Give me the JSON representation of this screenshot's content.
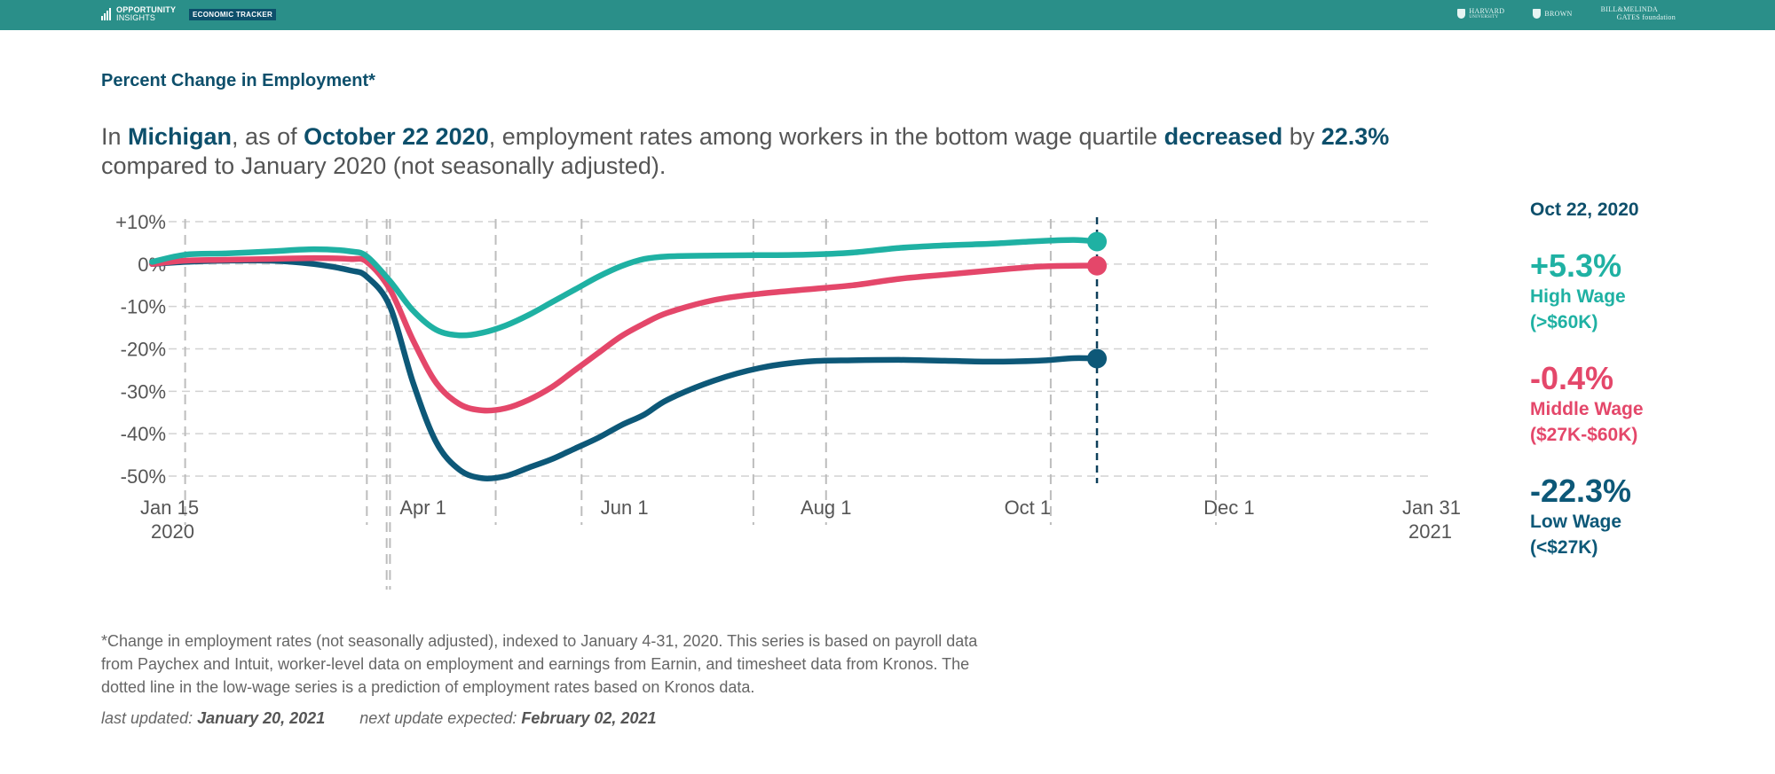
{
  "header": {
    "brand_name_line1": "OPPORTUNITY",
    "brand_name_line2": "INSIGHTS",
    "brand_tag": "ECONOMIC TRACKER",
    "partners": [
      {
        "line1": "HARVARD",
        "line2": "UNIVERSITY"
      },
      {
        "line1": "BROWN",
        "line2": ""
      },
      {
        "line1": "BILL&MELINDA",
        "line2": "GATES foundation"
      }
    ]
  },
  "chart_label": "Percent Change in Employment*",
  "headline": {
    "p1": "In ",
    "state": "Michigan",
    "p2": ", as of ",
    "date": "October 22 2020",
    "p3": ", employment rates among workers in the bottom wage quartile ",
    "direction": "decreased",
    "p4": " by ",
    "amount": "22.3%",
    "p5": " compared to January 2020 (not seasonally adjusted)."
  },
  "sidebar": {
    "date": "Oct 22, 2020",
    "items": [
      {
        "value": "+5.3%",
        "name": "High Wage",
        "range": "(>$60K)",
        "color": "#1fb1a3"
      },
      {
        "value": "-0.4%",
        "name": "Middle Wage",
        "range": "($27K-$60K)",
        "color": "#e4476a"
      },
      {
        "value": "-22.3%",
        "name": "Low Wage",
        "range": "(<$27K)",
        "color": "#0d5878"
      }
    ]
  },
  "footnote": "*Change in employment rates (not seasonally adjusted), indexed to January 4-31, 2020. This series is based on payroll data from Paychex and Intuit, worker-level data on employment and earnings from Earnin, and timesheet data from Kronos. The dotted line in the low-wage series is a prediction of employment rates based on Kronos data.",
  "updated": {
    "last_label": "last updated:",
    "last_date": "January 20, 2021",
    "next_label": "next update expected:",
    "next_date": "February 02, 2021"
  },
  "chart_data": {
    "type": "line",
    "xlabel": "",
    "ylabel": "",
    "x_range": [
      "2020-01-15",
      "2021-01-31"
    ],
    "ylim": [
      -50,
      10
    ],
    "y_ticks": [
      10,
      0,
      -10,
      -20,
      -30,
      -40,
      -50
    ],
    "y_tick_labels": [
      "+10%",
      "0%",
      "-10%",
      "-20%",
      "-30%",
      "-40%",
      "-50%"
    ],
    "x_ticks": [
      {
        "date": "2020-01-15",
        "label": "Jan 15",
        "label2": "2020"
      },
      {
        "date": "2020-04-01",
        "label": "Apr 1",
        "label2": ""
      },
      {
        "date": "2020-06-01",
        "label": "Jun 1",
        "label2": ""
      },
      {
        "date": "2020-08-01",
        "label": "Aug 1",
        "label2": ""
      },
      {
        "date": "2020-10-01",
        "label": "Oct 1",
        "label2": ""
      },
      {
        "date": "2020-12-01",
        "label": "Dec 1",
        "label2": ""
      },
      {
        "date": "2021-01-31",
        "label": "Jan 31",
        "label2": "2021"
      }
    ],
    "event_lines": [
      "2020-01-20",
      "2020-03-15",
      "2020-03-21",
      "2020-03-22",
      "2020-04-23",
      "2020-05-19",
      "2020-07-10",
      "2020-08-01",
      "2020-10-08",
      "2020-11-27"
    ],
    "current_date": "2020-10-22",
    "grid": true,
    "series": [
      {
        "name": "High Wage",
        "color": "#1fb1a3",
        "points": [
          [
            "2020-01-10",
            0.5
          ],
          [
            "2020-01-20",
            2.2
          ],
          [
            "2020-02-01",
            2.5
          ],
          [
            "2020-02-15",
            3.0
          ],
          [
            "2020-02-28",
            3.5
          ],
          [
            "2020-03-10",
            3.0
          ],
          [
            "2020-03-15",
            1.8
          ],
          [
            "2020-03-22",
            -4.0
          ],
          [
            "2020-03-29",
            -11.0
          ],
          [
            "2020-04-05",
            -15.5
          ],
          [
            "2020-04-12",
            -16.8
          ],
          [
            "2020-04-19",
            -16.2
          ],
          [
            "2020-04-26",
            -14.5
          ],
          [
            "2020-05-03",
            -12.0
          ],
          [
            "2020-05-10",
            -9.0
          ],
          [
            "2020-05-17",
            -6.0
          ],
          [
            "2020-05-24",
            -3.0
          ],
          [
            "2020-05-31",
            -0.5
          ],
          [
            "2020-06-07",
            1.2
          ],
          [
            "2020-06-14",
            1.8
          ],
          [
            "2020-06-28",
            2.0
          ],
          [
            "2020-07-12",
            2.1
          ],
          [
            "2020-07-26",
            2.2
          ],
          [
            "2020-08-09",
            2.7
          ],
          [
            "2020-08-23",
            3.8
          ],
          [
            "2020-09-06",
            4.4
          ],
          [
            "2020-09-20",
            4.8
          ],
          [
            "2020-10-04",
            5.4
          ],
          [
            "2020-10-15",
            5.7
          ],
          [
            "2020-10-22",
            5.3
          ]
        ]
      },
      {
        "name": "Middle Wage",
        "color": "#e4476a",
        "points": [
          [
            "2020-01-10",
            0.0
          ],
          [
            "2020-01-20",
            0.8
          ],
          [
            "2020-02-01",
            1.0
          ],
          [
            "2020-02-15",
            1.2
          ],
          [
            "2020-02-28",
            1.4
          ],
          [
            "2020-03-10",
            1.2
          ],
          [
            "2020-03-15",
            0.5
          ],
          [
            "2020-03-22",
            -6.0
          ],
          [
            "2020-03-29",
            -18.0
          ],
          [
            "2020-04-05",
            -28.0
          ],
          [
            "2020-04-12",
            -33.0
          ],
          [
            "2020-04-19",
            -34.5
          ],
          [
            "2020-04-26",
            -34.0
          ],
          [
            "2020-05-03",
            -32.0
          ],
          [
            "2020-05-10",
            -29.0
          ],
          [
            "2020-05-17",
            -25.0
          ],
          [
            "2020-05-24",
            -21.0
          ],
          [
            "2020-05-31",
            -17.0
          ],
          [
            "2020-06-07",
            -14.0
          ],
          [
            "2020-06-14",
            -11.5
          ],
          [
            "2020-06-28",
            -8.5
          ],
          [
            "2020-07-12",
            -7.0
          ],
          [
            "2020-07-26",
            -6.0
          ],
          [
            "2020-08-09",
            -5.0
          ],
          [
            "2020-08-23",
            -3.5
          ],
          [
            "2020-09-06",
            -2.5
          ],
          [
            "2020-09-20",
            -1.5
          ],
          [
            "2020-10-04",
            -0.6
          ],
          [
            "2020-10-15",
            -0.4
          ],
          [
            "2020-10-22",
            -0.4
          ]
        ]
      },
      {
        "name": "Low Wage",
        "color": "#0d5878",
        "points": [
          [
            "2020-01-10",
            0.0
          ],
          [
            "2020-01-20",
            0.5
          ],
          [
            "2020-02-01",
            0.8
          ],
          [
            "2020-02-15",
            0.8
          ],
          [
            "2020-02-28",
            0.0
          ],
          [
            "2020-03-10",
            -1.5
          ],
          [
            "2020-03-15",
            -3.0
          ],
          [
            "2020-03-22",
            -10.0
          ],
          [
            "2020-03-29",
            -28.0
          ],
          [
            "2020-04-05",
            -42.0
          ],
          [
            "2020-04-12",
            -48.5
          ],
          [
            "2020-04-19",
            -50.5
          ],
          [
            "2020-04-26",
            -50.0
          ],
          [
            "2020-05-03",
            -48.0
          ],
          [
            "2020-05-10",
            -46.0
          ],
          [
            "2020-05-17",
            -43.5
          ],
          [
            "2020-05-24",
            -41.0
          ],
          [
            "2020-05-31",
            -38.0
          ],
          [
            "2020-06-07",
            -35.5
          ],
          [
            "2020-06-14",
            -32.0
          ],
          [
            "2020-06-28",
            -27.5
          ],
          [
            "2020-07-12",
            -24.5
          ],
          [
            "2020-07-26",
            -23.0
          ],
          [
            "2020-08-09",
            -22.7
          ],
          [
            "2020-08-23",
            -22.6
          ],
          [
            "2020-09-06",
            -22.8
          ],
          [
            "2020-09-20",
            -23.0
          ],
          [
            "2020-10-04",
            -22.8
          ],
          [
            "2020-10-15",
            -22.2
          ],
          [
            "2020-10-22",
            -22.3
          ]
        ]
      }
    ]
  }
}
